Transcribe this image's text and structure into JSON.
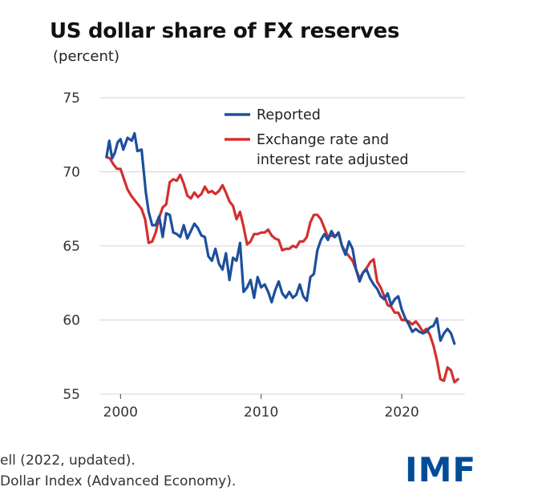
{
  "chart_data": {
    "type": "line",
    "title": "US dollar share of FX reserves",
    "subtitle": "(percent)",
    "xlabel": "",
    "ylabel": "",
    "xlim": [
      1998.5,
      2024.5
    ],
    "ylim": [
      55,
      75
    ],
    "yticks": [
      75,
      70,
      65,
      60,
      55
    ],
    "xticks": [
      2000,
      2010,
      2020
    ],
    "grid": true,
    "legend_position": "top-right",
    "series": [
      {
        "name": "Reported",
        "color": "#1d4f9c",
        "x": [
          1999.0,
          1999.2,
          1999.4,
          1999.6,
          1999.8,
          2000.0,
          2000.2,
          2000.5,
          2000.8,
          2001.0,
          2001.2,
          2001.5,
          2001.8,
          2002.0,
          2002.25,
          2002.5,
          2002.75,
          2003.0,
          2003.25,
          2003.5,
          2003.75,
          2004.0,
          2004.25,
          2004.5,
          2004.75,
          2005.0,
          2005.25,
          2005.5,
          2005.75,
          2006.0,
          2006.25,
          2006.5,
          2006.75,
          2007.0,
          2007.25,
          2007.5,
          2007.75,
          2008.0,
          2008.25,
          2008.5,
          2008.75,
          2009.0,
          2009.25,
          2009.5,
          2009.75,
          2010.0,
          2010.25,
          2010.5,
          2010.75,
          2011.0,
          2011.25,
          2011.5,
          2011.75,
          2012.0,
          2012.25,
          2012.5,
          2012.75,
          2013.0,
          2013.25,
          2013.5,
          2013.75,
          2014.0,
          2014.25,
          2014.5,
          2014.75,
          2015.0,
          2015.25,
          2015.5,
          2015.75,
          2016.0,
          2016.25,
          2016.5,
          2016.75,
          2017.0,
          2017.25,
          2017.5,
          2017.75,
          2018.0,
          2018.25,
          2018.5,
          2018.75,
          2019.0,
          2019.25,
          2019.5,
          2019.75,
          2020.0,
          2020.25,
          2020.5,
          2020.75,
          2021.0,
          2021.25,
          2021.5,
          2021.75,
          2022.0,
          2022.25,
          2022.5,
          2022.75,
          2023.0,
          2023.25,
          2023.5,
          2023.75
        ],
        "values": [
          71.0,
          72.1,
          70.9,
          71.3,
          72.0,
          72.2,
          71.5,
          72.3,
          72.1,
          72.6,
          71.4,
          71.5,
          68.6,
          67.3,
          66.4,
          66.4,
          67.0,
          65.6,
          67.2,
          67.1,
          65.9,
          65.8,
          65.6,
          66.4,
          65.5,
          66.0,
          66.5,
          66.2,
          65.7,
          65.6,
          64.3,
          64.0,
          64.8,
          63.8,
          63.4,
          64.5,
          62.7,
          64.2,
          64.0,
          65.2,
          61.9,
          62.2,
          62.7,
          61.5,
          62.9,
          62.2,
          62.4,
          61.9,
          61.2,
          62.0,
          62.6,
          61.8,
          61.5,
          61.9,
          61.5,
          61.7,
          62.4,
          61.6,
          61.3,
          62.9,
          63.1,
          64.7,
          65.4,
          65.8,
          65.4,
          66.0,
          65.6,
          65.9,
          65.0,
          64.4,
          65.3,
          64.8,
          63.4,
          62.6,
          63.2,
          63.4,
          62.8,
          62.4,
          62.1,
          61.6,
          61.4,
          61.8,
          61.0,
          61.4,
          61.6,
          60.7,
          60.1,
          59.7,
          59.2,
          59.4,
          59.2,
          59.1,
          59.2,
          59.5,
          59.6,
          60.1,
          58.6,
          59.1,
          59.4,
          59.1,
          58.4
        ]
      },
      {
        "name": "Exchange rate and interest rate adjusted",
        "color": "#d32f2f",
        "x": [
          1999.0,
          1999.25,
          1999.5,
          1999.75,
          2000.0,
          2000.25,
          2000.5,
          2000.75,
          2001.0,
          2001.25,
          2001.5,
          2001.75,
          2002.0,
          2002.25,
          2002.5,
          2002.75,
          2003.0,
          2003.25,
          2003.5,
          2003.75,
          2004.0,
          2004.25,
          2004.5,
          2004.75,
          2005.0,
          2005.25,
          2005.5,
          2005.75,
          2006.0,
          2006.25,
          2006.5,
          2006.75,
          2007.0,
          2007.25,
          2007.5,
          2007.75,
          2008.0,
          2008.25,
          2008.5,
          2008.75,
          2009.0,
          2009.25,
          2009.5,
          2009.75,
          2010.0,
          2010.25,
          2010.5,
          2010.75,
          2011.0,
          2011.25,
          2011.5,
          2011.75,
          2012.0,
          2012.25,
          2012.5,
          2012.75,
          2013.0,
          2013.25,
          2013.5,
          2013.75,
          2014.0,
          2014.25,
          2014.5,
          2014.75,
          2015.0,
          2015.25,
          2015.5,
          2015.75,
          2016.0,
          2016.25,
          2016.5,
          2016.75,
          2017.0,
          2017.25,
          2017.5,
          2017.75,
          2018.0,
          2018.25,
          2018.5,
          2018.75,
          2019.0,
          2019.25,
          2019.5,
          2019.75,
          2020.0,
          2020.25,
          2020.5,
          2020.75,
          2021.0,
          2021.25,
          2021.5,
          2021.75,
          2022.0,
          2022.25,
          2022.5,
          2022.75,
          2023.0,
          2023.25,
          2023.5,
          2023.75,
          2024.0
        ],
        "values": [
          71.0,
          70.9,
          70.5,
          70.2,
          70.2,
          69.5,
          68.8,
          68.4,
          68.1,
          67.8,
          67.5,
          66.8,
          65.2,
          65.3,
          65.9,
          66.9,
          67.6,
          67.8,
          69.3,
          69.5,
          69.4,
          69.8,
          69.2,
          68.4,
          68.2,
          68.6,
          68.3,
          68.5,
          69.0,
          68.6,
          68.7,
          68.5,
          68.7,
          69.1,
          68.6,
          68.0,
          67.7,
          66.8,
          67.3,
          66.3,
          65.1,
          65.3,
          65.8,
          65.8,
          65.9,
          65.9,
          66.1,
          65.7,
          65.5,
          65.4,
          64.7,
          64.8,
          64.8,
          65.0,
          64.9,
          65.3,
          65.3,
          65.6,
          66.6,
          67.1,
          67.1,
          66.8,
          66.2,
          65.6,
          65.7,
          65.6,
          65.9,
          65.0,
          64.6,
          64.3,
          64.0,
          63.4,
          62.8,
          63.2,
          63.5,
          63.9,
          64.1,
          62.6,
          62.2,
          61.6,
          61.0,
          60.9,
          60.5,
          60.5,
          60.0,
          60.0,
          59.9,
          59.7,
          59.9,
          59.6,
          59.2,
          59.4,
          59.0,
          58.3,
          57.3,
          56.0,
          55.9,
          56.8,
          56.6,
          55.8,
          56.0
        ]
      }
    ],
    "source_lines": [
      "ell (2022, updated).",
      "Dollar Index (Advanced Economy)."
    ],
    "logo": "IMF",
    "logo_color": "#004c97"
  }
}
